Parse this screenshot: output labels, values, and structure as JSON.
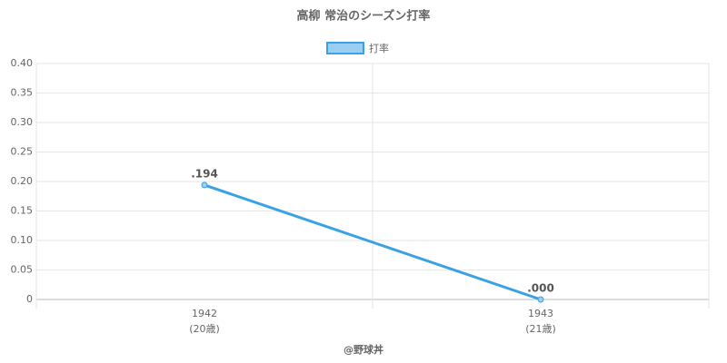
{
  "chart_data": {
    "type": "line",
    "title": "高柳 常治のシーズン打率",
    "categories": [
      "1942",
      "1943"
    ],
    "category_sublabels": [
      "(20歳)",
      "(21歳)"
    ],
    "series": [
      {
        "name": "打率",
        "color": "#3ba1e6",
        "fill": "#9ccdf3",
        "values": [
          0.194,
          0.0
        ],
        "value_labels": [
          ".194",
          ".000"
        ]
      }
    ],
    "ylim": [
      0,
      0.4
    ],
    "yticks": [
      0,
      0.05,
      {
        "value": 0.1,
        "label": "0.10"
      },
      0.15,
      {
        "value": 0.2,
        "label": "0.20"
      },
      0.25,
      {
        "value": 0.3,
        "label": "0.30"
      },
      0.35,
      {
        "value": 0.4,
        "label": "0.40"
      }
    ],
    "grid": true,
    "legend": "top",
    "footer": "@野球丼"
  }
}
